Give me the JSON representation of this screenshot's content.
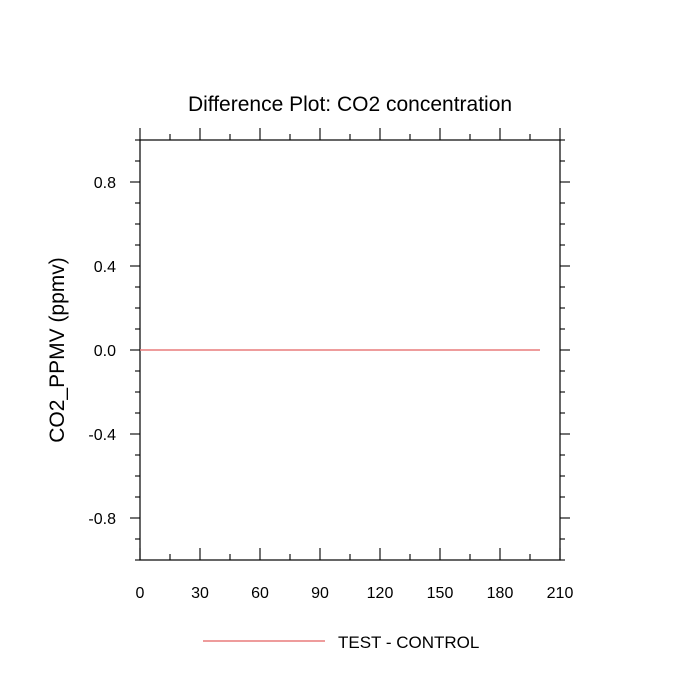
{
  "chart_data": {
    "type": "line",
    "title": "Difference Plot: CO2 concentration",
    "xlabel": "",
    "ylabel": "CO2_PPMV  (ppmv)",
    "xlim": [
      0,
      210
    ],
    "ylim": [
      -1,
      1
    ],
    "x_ticks": [
      0,
      30,
      60,
      90,
      120,
      150,
      180,
      210
    ],
    "x_tick_labels": [
      "0",
      "30",
      "60",
      "90",
      "120",
      "150",
      "180",
      "210"
    ],
    "y_ticks": [
      0.8,
      0.4,
      0.0,
      -0.4,
      -0.8
    ],
    "y_tick_labels": [
      "0.8",
      "0.4",
      "0.0",
      "-0.4",
      "-0.8"
    ],
    "series": [
      {
        "name": "TEST - CONTROL",
        "color": "#e87c7c",
        "x": [
          0,
          200
        ],
        "y": [
          0,
          0
        ]
      }
    ],
    "legend_position": "bottom-center",
    "grid": false
  }
}
